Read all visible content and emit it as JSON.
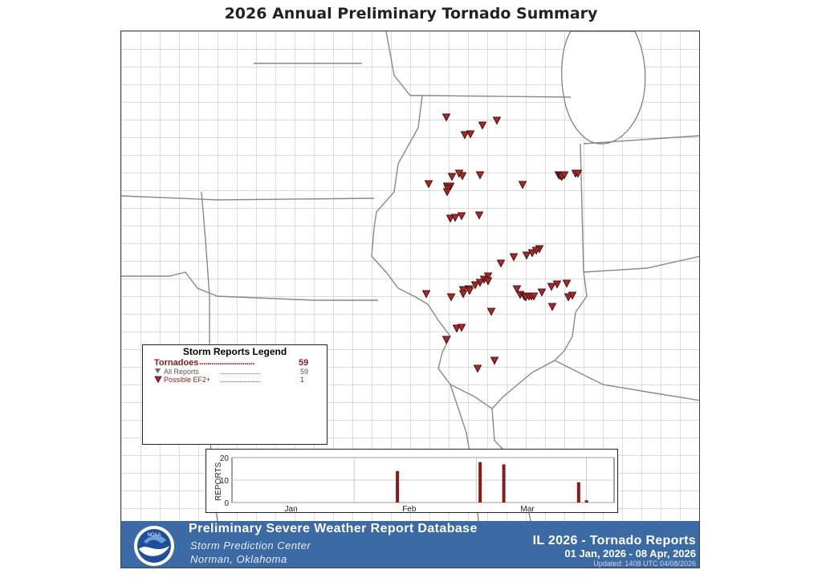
{
  "title": "2026 Annual Preliminary Tornado Summary",
  "colors": {
    "marker_fill": "#a52a2a",
    "marker_stroke": "#4a0f0f",
    "footer_bg": "#3b6aa5",
    "legend_text": "#8b1a1a",
    "bar": "#8b1a1a"
  },
  "legend": {
    "title": "Storm Reports Legend",
    "tornadoes_label": "Tornadoes",
    "tornadoes_dots": "...........................",
    "tornadoes_count": "59",
    "all_reports_label": "All Reports",
    "all_reports_dots": ".........................",
    "all_reports_count": "59",
    "ef2_label": "Possible EF2+",
    "ef2_dots": ".........................",
    "ef2_count": "1"
  },
  "chart_data": {
    "type": "bar",
    "ylabel": "REPORTS",
    "ylim": [
      0,
      20
    ],
    "yticks": [
      0,
      10,
      20
    ],
    "x_tick_labels": [
      "Jan",
      "Feb",
      "Mar"
    ],
    "series": [
      {
        "day": 43,
        "value": 14
      },
      {
        "day": 64,
        "value": 18
      },
      {
        "day": 70,
        "value": 17
      },
      {
        "day": 89,
        "value": 9
      },
      {
        "day": 91,
        "value": 1
      }
    ],
    "xlim_days": [
      1,
      98
    ]
  },
  "footer": {
    "logo_text": "NOAA",
    "db_title": "Preliminary Severe Weather Report Database",
    "org_line1": "Storm Prediction Center",
    "org_line2": "Norman, Oklahoma",
    "report_title": "IL 2026 - Tornado Reports",
    "date_range": "01 Jan, 2026 - 08 Apr, 2026",
    "updated": "Updated: 1408 UTC 04/08/2026"
  }
}
